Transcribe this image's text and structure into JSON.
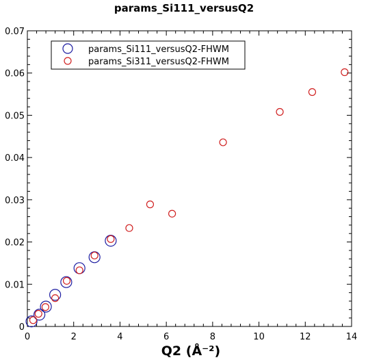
{
  "chart_data": {
    "type": "scatter",
    "title": "params_Si111_versusQ2",
    "xlabel": "Q2 (Å⁻²)",
    "ylabel": "",
    "xlim": [
      0,
      14
    ],
    "ylim": [
      0,
      0.07
    ],
    "x_ticks": [
      0,
      2,
      4,
      6,
      8,
      10,
      12,
      14
    ],
    "x_tick_labels": [
      "0",
      "2",
      "4",
      "6",
      "8",
      "10",
      "12",
      "14"
    ],
    "y_ticks": [
      0,
      0.01,
      0.02,
      0.03,
      0.04,
      0.05,
      0.06,
      0.07
    ],
    "y_tick_labels": [
      "0",
      "0.01",
      "0.02",
      "0.03",
      "0.04",
      "0.05",
      "0.06",
      "0.07"
    ],
    "grid": false,
    "legend_position": "top-left",
    "series": [
      {
        "name": "params_Si111_versusQ2-FHWM",
        "color": "#1a1aa0",
        "marker": "open-circle-large",
        "points": [
          [
            0.18,
            0.0012
          ],
          [
            0.52,
            0.0028
          ],
          [
            0.8,
            0.0047
          ],
          [
            1.2,
            0.0075
          ],
          [
            1.68,
            0.0105
          ],
          [
            2.25,
            0.0138
          ],
          [
            2.9,
            0.0164
          ],
          [
            3.6,
            0.0203
          ]
        ]
      },
      {
        "name": "params_Si311_versusQ2-FHWM",
        "color": "#d02020",
        "marker": "open-circle-small",
        "points": [
          [
            0.25,
            0.0015
          ],
          [
            0.48,
            0.003
          ],
          [
            0.78,
            0.0046
          ],
          [
            1.2,
            0.0067
          ],
          [
            1.7,
            0.0108
          ],
          [
            2.25,
            0.0133
          ],
          [
            2.9,
            0.0168
          ],
          [
            3.6,
            0.0207
          ],
          [
            4.4,
            0.0233
          ],
          [
            5.3,
            0.0289
          ],
          [
            6.25,
            0.0267
          ],
          [
            8.45,
            0.0436
          ],
          [
            10.9,
            0.0508
          ],
          [
            12.3,
            0.0555
          ],
          [
            13.7,
            0.0602
          ]
        ]
      }
    ]
  }
}
